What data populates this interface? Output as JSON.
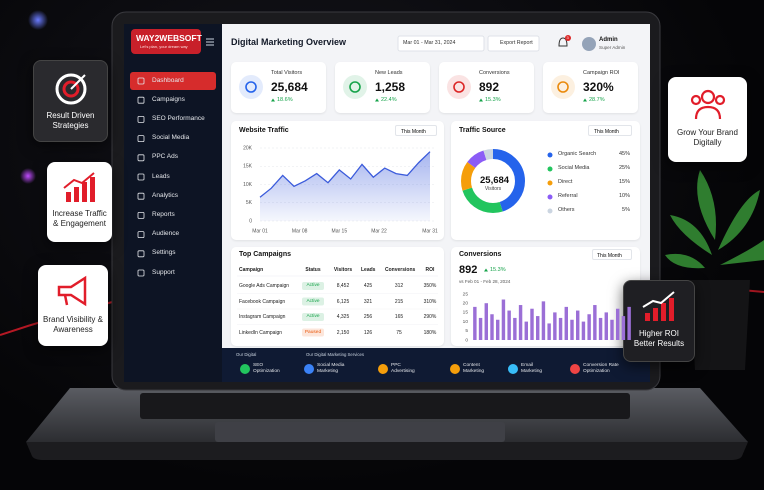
{
  "brand": {
    "name": "WAY2WEBSOFT",
    "tagline": "Let's plan, your dream way"
  },
  "sidebar": {
    "items": [
      "Dashboard",
      "Campaigns",
      "SEO Performance",
      "Social Media",
      "PPC Ads",
      "Leads",
      "Analytics",
      "Reports",
      "Audience",
      "Settings",
      "Support"
    ]
  },
  "header": {
    "title": "Digital Marketing Overview",
    "date_range": "Mar 01 - Mar 31, 2024",
    "export": "Export Report",
    "notifications": "3",
    "user": {
      "name": "Admin",
      "role": "Super Admin"
    }
  },
  "kpis": [
    {
      "label": "Total Visitors",
      "value": "25,684",
      "change": "18.6%",
      "color": "#2563eb"
    },
    {
      "label": "New Leads",
      "value": "1,258",
      "change": "22.4%",
      "color": "#16a34a"
    },
    {
      "label": "Conversions",
      "value": "892",
      "change": "15.3%",
      "color": "#dc2626"
    },
    {
      "label": "Campaign ROI",
      "value": "320%",
      "change": "28.7%",
      "color": "#ea8a0c"
    }
  ],
  "traffic": {
    "type": "line",
    "title": "Website Traffic",
    "period": "This Month",
    "x": [
      1,
      3,
      5,
      7,
      9,
      11,
      13,
      15,
      17,
      19,
      21,
      23,
      25,
      27,
      29,
      31
    ],
    "values": [
      6500,
      9000,
      12500,
      9500,
      11000,
      13000,
      10500,
      14000,
      11500,
      15500,
      12000,
      14500,
      13000,
      12500,
      16000,
      19000
    ],
    "color": "#3b5bdb",
    "xlim": [
      1,
      31
    ],
    "xticks": [
      {
        "value": 1,
        "label": "Mar 01"
      },
      {
        "value": 8,
        "label": "Mar 08"
      },
      {
        "value": 15,
        "label": "Mar 15"
      },
      {
        "value": 22,
        "label": "Mar 22"
      },
      {
        "value": 31,
        "label": "Mar 31"
      }
    ],
    "ylim": [
      0,
      20000
    ],
    "yticks": [
      0,
      {
        "value": 5000,
        "label": "5K"
      },
      {
        "value": 10000,
        "label": "10K"
      },
      {
        "value": 15000,
        "label": "15K"
      },
      {
        "value": 20000,
        "label": "20K"
      }
    ],
    "grid": true
  },
  "traffic_source": {
    "type": "pie",
    "title": "Traffic Source",
    "period": "This Month",
    "center_value": "25,684",
    "center_label": "Visitors",
    "categories": [
      "Organic Search",
      "Social Media",
      "Direct",
      "Referral",
      "Others"
    ],
    "values": [
      45,
      25,
      15,
      10,
      5
    ],
    "value_labels": [
      "45%",
      "25%",
      "15%",
      "10%",
      "5%"
    ],
    "colors": [
      "#2563eb",
      "#22c55e",
      "#f59e0b",
      "#8b5cf6",
      "#cbd5e1"
    ]
  },
  "campaigns": {
    "title": "Top Campaigns",
    "columns": [
      "Campaign",
      "Status",
      "Visitors",
      "Leads",
      "Conversions",
      "ROI"
    ],
    "rows": [
      [
        "Google Ads Campaign",
        "Active",
        "8,452",
        "425",
        "312",
        "350%"
      ],
      [
        "Facebook Campaign",
        "Active",
        "6,125",
        "321",
        "215",
        "310%"
      ],
      [
        "Instagram Campaign",
        "Active",
        "4,325",
        "256",
        "165",
        "290%"
      ],
      [
        "LinkedIn Campaign",
        "Paused",
        "2,150",
        "126",
        "75",
        "180%"
      ]
    ],
    "status_colors": [
      "#16a34a",
      "#16a34a",
      "#16a34a",
      "#ea580c"
    ]
  },
  "conversions": {
    "type": "bar",
    "title": "Conversions",
    "period": "This Month",
    "value": "892",
    "change": "15.3%",
    "comparison": "vs Feb 01 - Feb 28, 2024",
    "values": [
      18,
      12,
      20,
      14,
      11,
      22,
      16,
      12,
      19,
      10,
      17,
      13,
      21,
      9,
      15,
      12,
      18,
      11,
      16,
      10,
      14,
      19,
      12,
      15,
      11,
      17,
      13,
      18
    ],
    "color": "#9b6fd6",
    "ylim": [
      0,
      25
    ],
    "yticks": [
      0,
      5,
      10,
      15,
      20,
      25
    ]
  },
  "services": {
    "label": "Our Digital",
    "title": "Our Digital Marketing Services",
    "items": [
      {
        "text": "SEO Optimization",
        "color": "#22c55e"
      },
      {
        "text": "Social Media Marketing",
        "color": "#3b82f6"
      },
      {
        "text": "PPC Advertising",
        "color": "#f59e0b"
      },
      {
        "text": "Content Marketing",
        "color": "#f59e0b"
      },
      {
        "text": "Email Marketing",
        "color": "#38bdf8"
      },
      {
        "text": "Conversion Rate Optimization",
        "color": "#ef4444"
      }
    ]
  },
  "badges": [
    "Result Driven Strategies",
    "Increase Traffic & Engagement",
    "Brand Visibility & Awareness",
    "Grow Your Brand Digitally",
    "Higher ROI Better Results"
  ]
}
